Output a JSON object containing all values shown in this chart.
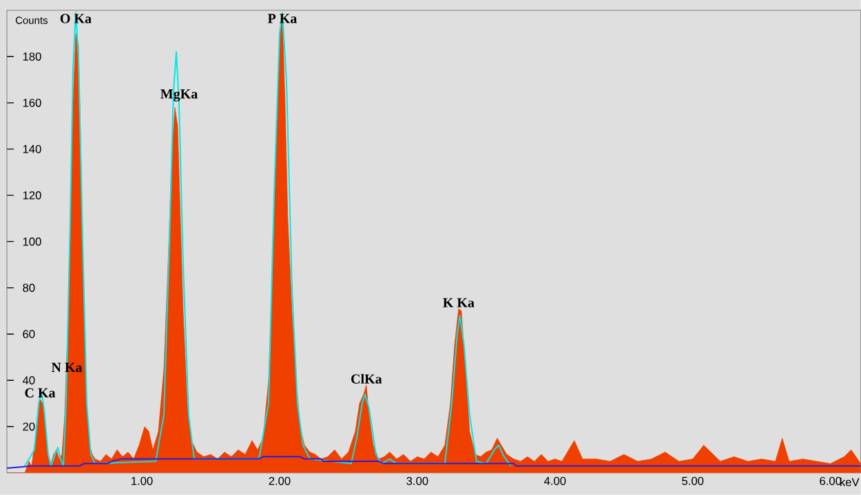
{
  "chart_data": {
    "type": "area",
    "xlabel": "keV",
    "ylabel": "Counts",
    "xlim": [
      0.02,
      6.22
    ],
    "ylim": [
      0,
      200
    ],
    "xticks": [
      {
        "value": 1,
        "label": "1.00"
      },
      {
        "value": 2,
        "label": "2.00"
      },
      {
        "value": 3,
        "label": "3.00"
      },
      {
        "value": 4,
        "label": "4.00"
      },
      {
        "value": 5,
        "label": "5.00"
      },
      {
        "value": 6,
        "label": "6.00"
      }
    ],
    "yticks": [
      20,
      40,
      60,
      80,
      100,
      120,
      140,
      160,
      180
    ],
    "series": [
      {
        "color": "#f04000",
        "x": [
          0.02,
          0.15,
          0.18,
          0.2,
          0.22,
          0.24,
          0.26,
          0.28,
          0.3,
          0.32,
          0.34,
          0.36,
          0.38,
          0.4,
          0.42,
          0.44,
          0.46,
          0.48,
          0.5,
          0.52,
          0.54,
          0.56,
          0.58,
          0.6,
          0.62,
          0.64,
          0.66,
          0.7,
          0.74,
          0.78,
          0.82,
          0.86,
          0.9,
          0.94,
          0.98,
          1.02,
          1.05,
          1.08,
          1.12,
          1.16,
          1.19,
          1.22,
          1.24,
          1.26,
          1.28,
          1.3,
          1.33,
          1.36,
          1.4,
          1.45,
          1.5,
          1.55,
          1.6,
          1.65,
          1.7,
          1.75,
          1.8,
          1.84,
          1.88,
          1.92,
          1.95,
          1.98,
          2.0,
          2.02,
          2.04,
          2.06,
          2.09,
          2.12,
          2.15,
          2.18,
          2.22,
          2.26,
          2.3,
          2.35,
          2.4,
          2.45,
          2.5,
          2.55,
          2.58,
          2.61,
          2.63,
          2.65,
          2.68,
          2.72,
          2.76,
          2.8,
          2.85,
          2.9,
          2.95,
          3.0,
          3.05,
          3.1,
          3.15,
          3.2,
          3.24,
          3.27,
          3.3,
          3.32,
          3.35,
          3.38,
          3.42,
          3.46,
          3.5,
          3.54,
          3.58,
          3.61,
          3.65,
          3.7,
          3.75,
          3.8,
          3.85,
          3.9,
          3.95,
          4.0,
          4.05,
          4.14,
          4.2,
          4.3,
          4.4,
          4.5,
          4.6,
          4.7,
          4.8,
          4.9,
          5.0,
          5.08,
          5.2,
          5.3,
          5.4,
          5.5,
          5.6,
          5.65,
          5.7,
          5.8,
          5.9,
          6.0,
          6.1,
          6.15,
          6.22
        ],
        "values": [
          0,
          0,
          5,
          3,
          12,
          20,
          32,
          30,
          20,
          8,
          4,
          8,
          10,
          6,
          8,
          25,
          60,
          110,
          160,
          190,
          185,
          130,
          70,
          30,
          12,
          8,
          6,
          5,
          8,
          6,
          10,
          7,
          9,
          6,
          12,
          20,
          18,
          10,
          18,
          45,
          90,
          140,
          158,
          150,
          110,
          70,
          30,
          14,
          9,
          7,
          8,
          6,
          9,
          7,
          10,
          8,
          14,
          10,
          15,
          40,
          90,
          150,
          190,
          199,
          160,
          110,
          70,
          40,
          20,
          12,
          9,
          8,
          6,
          7,
          10,
          6,
          9,
          18,
          30,
          34,
          38,
          25,
          12,
          6,
          7,
          9,
          6,
          8,
          5,
          7,
          6,
          9,
          7,
          12,
          30,
          55,
          71,
          70,
          45,
          18,
          8,
          7,
          9,
          10,
          15,
          12,
          8,
          6,
          5,
          7,
          5,
          8,
          5,
          6,
          5,
          14,
          6,
          6,
          5,
          8,
          5,
          6,
          9,
          5,
          6,
          12,
          5,
          7,
          5,
          6,
          5,
          15,
          5,
          6,
          5,
          4,
          7,
          10,
          4
        ]
      },
      {
        "type": "line",
        "color": "#00e8e8",
        "x": [
          0.15,
          0.22,
          0.25,
          0.27,
          0.29,
          0.32,
          0.34,
          0.37,
          0.39,
          0.41,
          0.43,
          0.45,
          0.48,
          0.5,
          0.52,
          0.54,
          0.57,
          0.6,
          0.63,
          0.66,
          1.1,
          1.16,
          1.2,
          1.23,
          1.25,
          1.27,
          1.3,
          1.34,
          1.38,
          1.85,
          1.92,
          1.96,
          2.0,
          2.02,
          2.05,
          2.09,
          2.13,
          2.17,
          2.22,
          2.52,
          2.56,
          2.6,
          2.62,
          2.65,
          2.7,
          2.74,
          2.8,
          2.85,
          3.2,
          3.25,
          3.29,
          3.31,
          3.34,
          3.38,
          3.43,
          3.5,
          3.56,
          3.59,
          3.63,
          3.68
        ],
        "values": [
          3,
          10,
          30,
          35,
          28,
          8,
          3,
          8,
          11,
          6,
          3,
          30,
          110,
          175,
          199,
          180,
          100,
          30,
          8,
          4,
          5,
          25,
          100,
          165,
          182,
          160,
          90,
          25,
          6,
          6,
          30,
          120,
          190,
          199,
          170,
          80,
          30,
          12,
          6,
          4,
          15,
          30,
          34,
          28,
          8,
          4,
          6,
          4,
          4,
          30,
          60,
          68,
          55,
          25,
          5,
          4,
          10,
          12,
          7,
          3
        ]
      },
      {
        "type": "line",
        "color": "#2020e0",
        "x": [
          0.02,
          0.2,
          0.55,
          0.58,
          0.75,
          0.78,
          0.85,
          1.85,
          1.88,
          2.15,
          2.18,
          2.3,
          2.32,
          2.72,
          2.75,
          3.7,
          3.72,
          6.22
        ],
        "values": [
          2,
          3,
          3,
          4,
          4,
          5,
          6,
          6,
          7,
          7,
          6,
          6,
          5,
          5,
          4,
          4,
          3,
          3
        ]
      }
    ],
    "annotations": [
      {
        "text": "C Ka",
        "x": 0.26,
        "y": 32
      },
      {
        "text": "N Ka",
        "x": 0.455,
        "y": 43
      },
      {
        "text": "O Ka",
        "x": 0.52,
        "y": 199
      },
      {
        "text": "MgKa",
        "x": 1.27,
        "y": 160
      },
      {
        "text": "P Ka",
        "x": 2.02,
        "y": 199
      },
      {
        "text": "ClKa",
        "x": 2.63,
        "y": 38
      },
      {
        "text": "K Ka",
        "x": 3.3,
        "y": 71
      }
    ]
  }
}
